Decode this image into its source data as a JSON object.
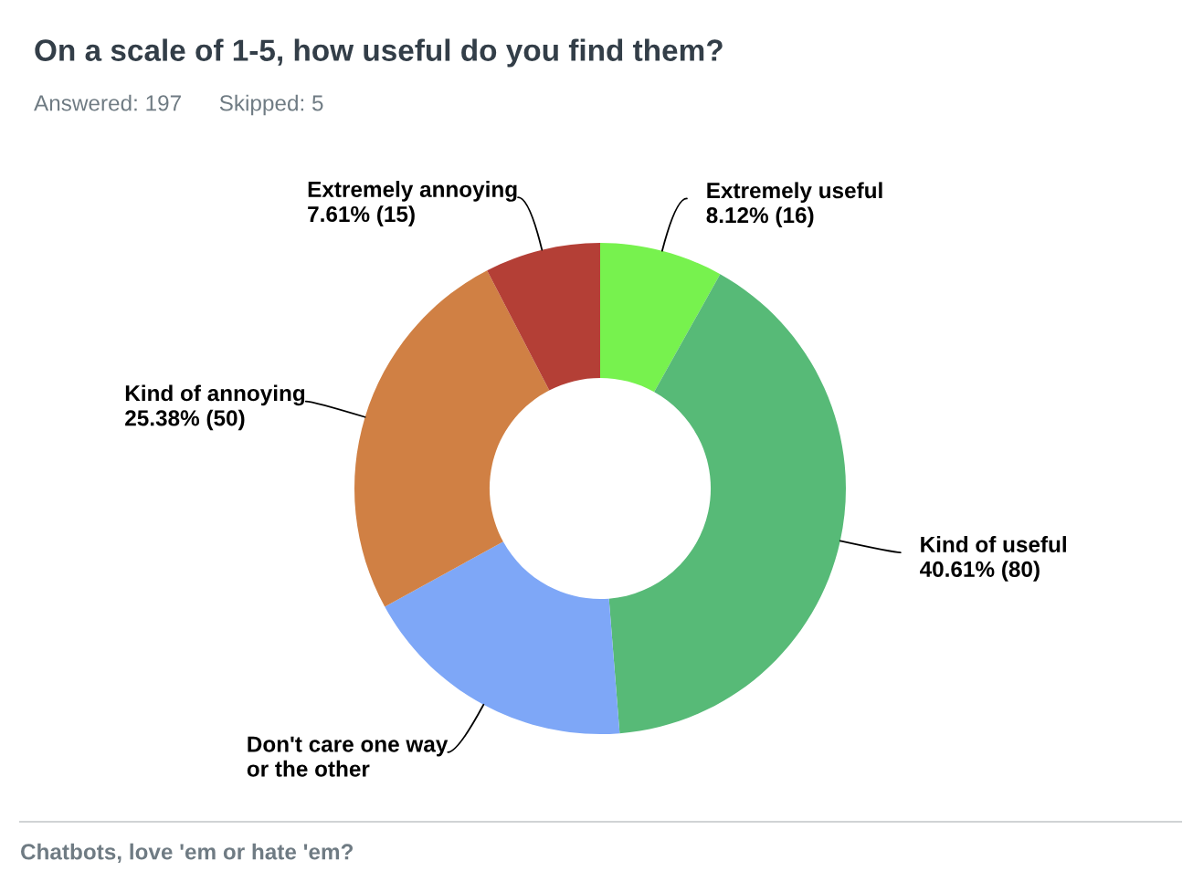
{
  "chart_data": {
    "type": "donut",
    "title": "On a scale of 1-5, how useful do you find them?",
    "subtitle": "Answered: 197      Skipped: 5",
    "categories": [
      "Extremely useful",
      "Kind of useful",
      "Don't care one way\nor the other",
      "Kind of annoying",
      "Extremely annoying"
    ],
    "values": [
      8.12,
      40.61,
      18.27,
      25.38,
      7.61
    ],
    "colors": [
      "#77f24e",
      "#57ba77",
      "#7ea7f7",
      "#d08044",
      "#b43f36"
    ],
    "value_labels": [
      "8.12% (16)",
      "40.61% (80)",
      null,
      "25.38% (50)",
      "7.61% (15)"
    ],
    "annotations": [
      "Chatbots, love 'em or hate 'em?"
    ]
  }
}
